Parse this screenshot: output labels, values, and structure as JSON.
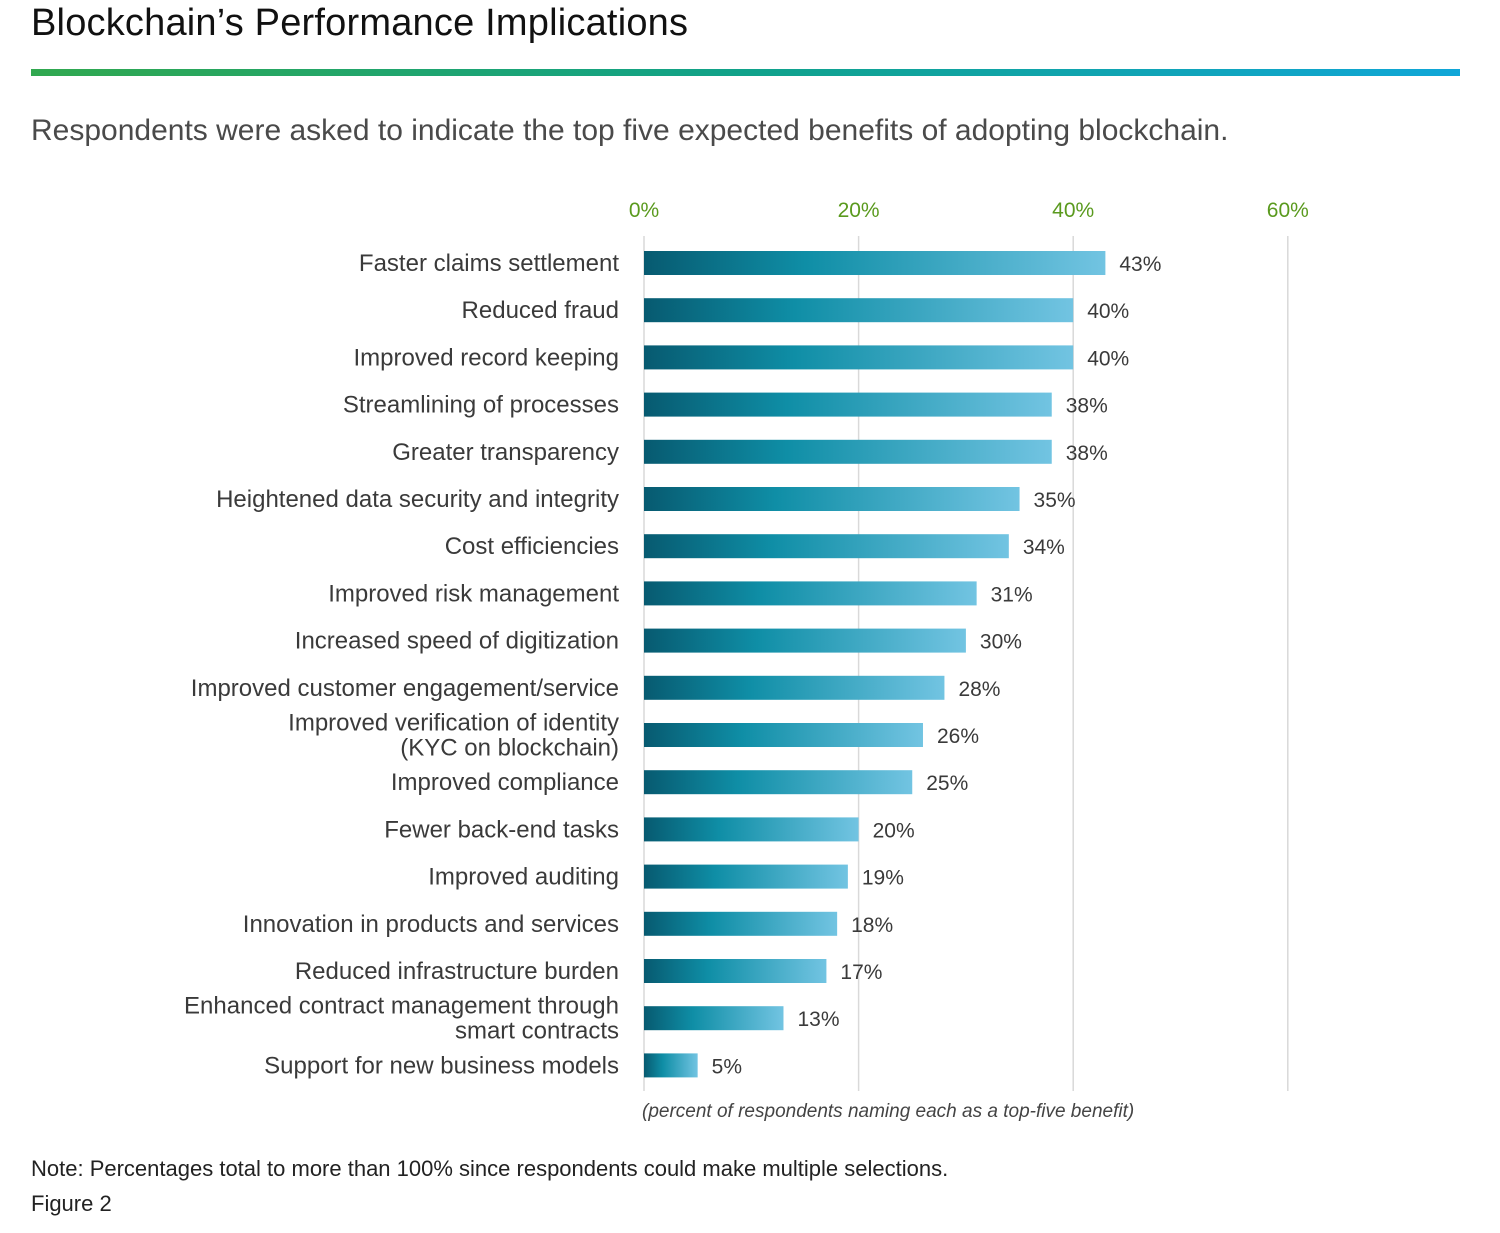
{
  "header": {
    "title": "Blockchain’s Performance Implications",
    "subtitle": "Respondents were asked to indicate the top five expected benefits of adopting blockchain."
  },
  "footer": {
    "note": "Note: Percentages total to more than 100% since respondents could make multiple selections.",
    "figure": "Figure 2"
  },
  "colors": {
    "title_rule_start": "#31a84f",
    "title_rule_end": "#10a6d8",
    "bar_dark": "#075a70",
    "bar_mid": "#0f8ea6",
    "bar_light": "#72c4e2",
    "tick_label": "#5a9a1e",
    "gridline": "#d9d9d9"
  },
  "chart_data": {
    "type": "bar",
    "orientation": "horizontal",
    "categories": [
      [
        "Faster claims settlement"
      ],
      [
        "Reduced fraud"
      ],
      [
        "Improved record keeping"
      ],
      [
        "Streamlining of processes"
      ],
      [
        "Greater transparency"
      ],
      [
        "Heightened data security and integrity"
      ],
      [
        "Cost efficiencies"
      ],
      [
        "Improved risk management"
      ],
      [
        "Increased speed of digitization"
      ],
      [
        "Improved customer engagement/service"
      ],
      [
        "Improved verification of identity",
        "(KYC on blockchain)"
      ],
      [
        "Improved compliance"
      ],
      [
        "Fewer back-end tasks"
      ],
      [
        "Improved auditing"
      ],
      [
        "Innovation in products and services"
      ],
      [
        "Reduced infrastructure burden"
      ],
      [
        "Enhanced contract management through",
        "smart contracts"
      ],
      [
        "Support for new business models"
      ]
    ],
    "values": [
      43,
      40,
      40,
      38,
      38,
      35,
      34,
      31,
      30,
      28,
      26,
      25,
      20,
      19,
      18,
      17,
      13,
      5
    ],
    "value_labels": [
      "43%",
      "40%",
      "40%",
      "38%",
      "38%",
      "35%",
      "34%",
      "31%",
      "30%",
      "28%",
      "26%",
      "25%",
      "20%",
      "19%",
      "18%",
      "17%",
      "13%",
      "5%"
    ],
    "xticks": [
      0,
      20,
      40,
      60
    ],
    "xtick_labels": [
      "0%",
      "20%",
      "40%",
      "60%"
    ],
    "xlim": [
      0,
      60
    ],
    "axis_position": "top",
    "grid": true,
    "xlabel": "(percent of respondents naming each as a top-five benefit)"
  }
}
